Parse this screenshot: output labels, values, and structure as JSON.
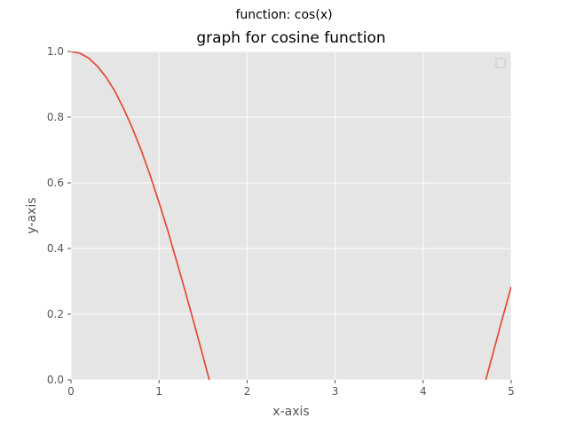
{
  "figure": {
    "suptitle": "function: cos(x)"
  },
  "chart_data": {
    "type": "line",
    "title": "graph for cosine function",
    "xlabel": "x-axis",
    "ylabel": "y-axis",
    "xlim": [
      0,
      5
    ],
    "ylim": [
      0,
      1
    ],
    "grid": true,
    "legend": "top-right (empty)",
    "x_ticks": [
      "0",
      "1",
      "2",
      "3",
      "4",
      "5"
    ],
    "y_ticks": [
      "0.0",
      "0.2",
      "0.4",
      "0.6",
      "0.8",
      "1.0"
    ],
    "series": [
      {
        "color": "#E24A33",
        "x": [
          0,
          0.1,
          0.2,
          0.3,
          0.4,
          0.5,
          0.6,
          0.7,
          0.8,
          0.9,
          1.0,
          1.1,
          1.2,
          1.3,
          1.4,
          1.5,
          1.571,
          4.712,
          4.8,
          4.9,
          5.0
        ],
        "y": [
          1.0,
          0.995,
          0.98,
          0.955,
          0.921,
          0.878,
          0.825,
          0.765,
          0.697,
          0.622,
          0.54,
          0.454,
          0.362,
          0.267,
          0.17,
          0.071,
          0.0,
          0.0,
          0.088,
          0.187,
          0.284
        ]
      }
    ]
  }
}
